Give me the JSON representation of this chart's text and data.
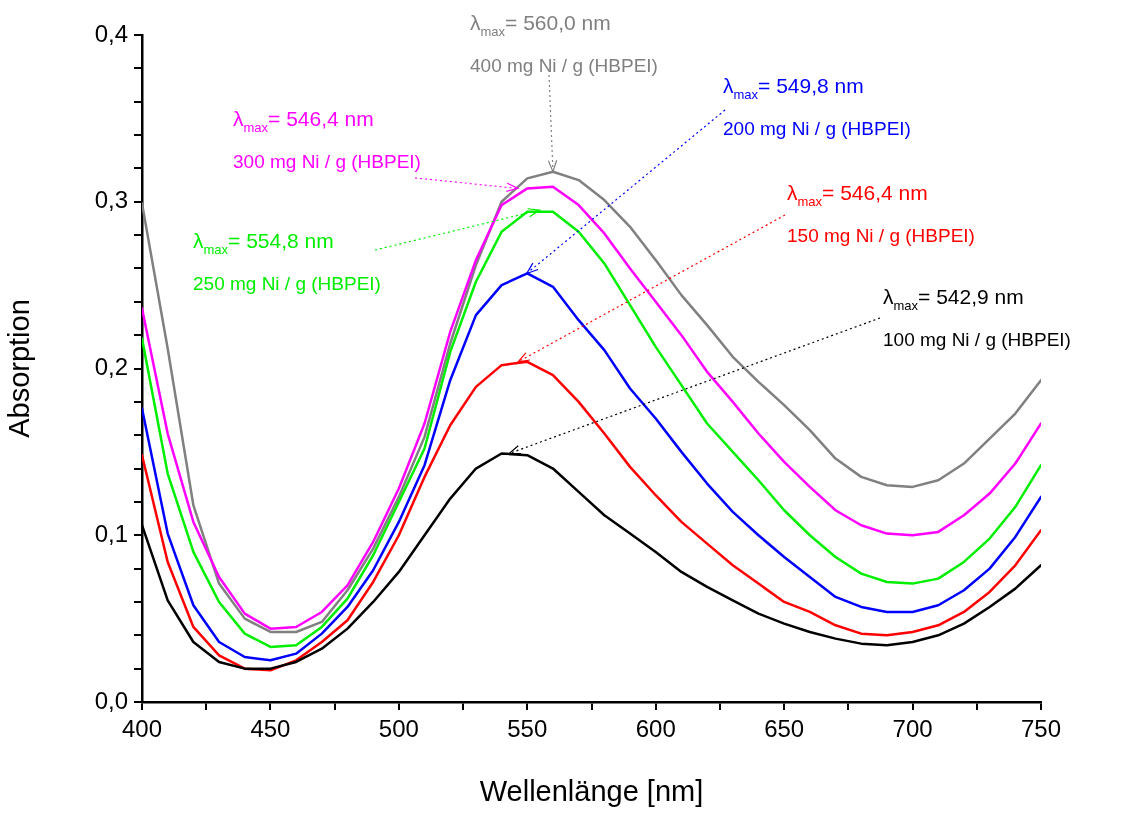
{
  "chart_data": {
    "type": "line",
    "xlabel": "Wellenlänge [nm]",
    "ylabel": "Absorption",
    "x": [
      400,
      410,
      420,
      430,
      440,
      450,
      460,
      470,
      480,
      490,
      500,
      510,
      520,
      530,
      540,
      550,
      560,
      570,
      580,
      590,
      600,
      610,
      620,
      630,
      640,
      650,
      660,
      670,
      680,
      690,
      700,
      710,
      720,
      730,
      740,
      750
    ],
    "series": [
      {
        "color": "#000000",
        "values": [
          0.106,
          0.061,
          0.036,
          0.024,
          0.02,
          0.02,
          0.024,
          0.032,
          0.044,
          0.06,
          0.078,
          0.1,
          0.122,
          0.14,
          0.149,
          0.148,
          0.14,
          0.126,
          0.112,
          0.101,
          0.09,
          0.078,
          0.069,
          0.061,
          0.053,
          0.047,
          0.042,
          0.038,
          0.035,
          0.034,
          0.036,
          0.04,
          0.047,
          0.057,
          0.068,
          0.082
        ]
      },
      {
        "color": "#ff0000",
        "values": [
          0.148,
          0.084,
          0.045,
          0.028,
          0.02,
          0.019,
          0.025,
          0.036,
          0.049,
          0.072,
          0.1,
          0.135,
          0.166,
          0.189,
          0.202,
          0.204,
          0.196,
          0.18,
          0.161,
          0.141,
          0.124,
          0.108,
          0.095,
          0.082,
          0.071,
          0.06,
          0.054,
          0.046,
          0.041,
          0.04,
          0.042,
          0.046,
          0.054,
          0.066,
          0.082,
          0.103
        ]
      },
      {
        "color": "#0000ff",
        "values": [
          0.176,
          0.101,
          0.058,
          0.036,
          0.027,
          0.025,
          0.029,
          0.041,
          0.057,
          0.079,
          0.108,
          0.142,
          0.193,
          0.232,
          0.25,
          0.257,
          0.249,
          0.229,
          0.211,
          0.188,
          0.17,
          0.15,
          0.131,
          0.114,
          0.1,
          0.087,
          0.075,
          0.063,
          0.057,
          0.054,
          0.054,
          0.058,
          0.067,
          0.08,
          0.099,
          0.123
        ]
      },
      {
        "color": "#00ee00",
        "values": [
          0.218,
          0.137,
          0.09,
          0.06,
          0.041,
          0.033,
          0.034,
          0.045,
          0.062,
          0.088,
          0.12,
          0.152,
          0.21,
          0.252,
          0.282,
          0.294,
          0.294,
          0.282,
          0.263,
          0.238,
          0.213,
          0.19,
          0.167,
          0.15,
          0.133,
          0.115,
          0.1,
          0.087,
          0.077,
          0.072,
          0.071,
          0.074,
          0.084,
          0.098,
          0.117,
          0.142
        ]
      },
      {
        "color": "#ff00ff",
        "values": [
          0.236,
          0.161,
          0.108,
          0.075,
          0.053,
          0.044,
          0.045,
          0.054,
          0.07,
          0.096,
          0.128,
          0.167,
          0.222,
          0.265,
          0.298,
          0.308,
          0.309,
          0.298,
          0.281,
          0.26,
          0.24,
          0.22,
          0.198,
          0.18,
          0.161,
          0.144,
          0.129,
          0.115,
          0.106,
          0.101,
          0.1,
          0.102,
          0.112,
          0.125,
          0.143,
          0.167
        ]
      },
      {
        "color": "#808080",
        "values": [
          0.299,
          0.212,
          0.118,
          0.071,
          0.05,
          0.042,
          0.042,
          0.048,
          0.067,
          0.092,
          0.123,
          0.159,
          0.215,
          0.262,
          0.3,
          0.314,
          0.318,
          0.313,
          0.301,
          0.285,
          0.265,
          0.244,
          0.226,
          0.207,
          0.192,
          0.178,
          0.163,
          0.146,
          0.135,
          0.13,
          0.129,
          0.133,
          0.143,
          0.158,
          0.173,
          0.193
        ]
      }
    ],
    "annotations": [
      {
        "text": "λ$_{max}$= 542,9 nm\n100 mg Ni / g (HBPEI)",
        "x": 542.9,
        "y": 0.149
      },
      {
        "text": "λ$_{max}$= 546,4 nm\n150 mg Ni / g (HBPEI)",
        "x": 546.4,
        "y": 0.204
      },
      {
        "text": "λ$_{max}$= 549,8 nm\n200 mg Ni / g (HBPEI)",
        "x": 549.8,
        "y": 0.257
      },
      {
        "text": "λ$_{max}$= 554,8 nm\n250 mg Ni / g (HBPEI)",
        "x": 554.8,
        "y": 0.295
      },
      {
        "text": "λ$_{max}$= 546,4 nm\n300 mg Ni / g (HBPEI)",
        "x": 546.4,
        "y": 0.308
      },
      {
        "text": "λ$_{max}$= 560,0 nm\n400 mg Ni / g (HBPEI)",
        "x": 560.0,
        "y": 0.318
      }
    ],
    "xlim": [
      400,
      750
    ],
    "xticks": [
      400,
      {
        "value": 425,
        "label": null
      },
      450,
      {
        "value": 475,
        "label": null
      },
      500,
      {
        "value": 525,
        "label": null
      },
      550,
      {
        "value": 575,
        "label": null
      },
      600,
      {
        "value": 625,
        "label": null
      },
      650,
      {
        "value": 675,
        "label": null
      },
      700,
      {
        "value": 725,
        "label": null
      },
      750
    ],
    "ylim": [
      0,
      0.4
    ],
    "yticks": [
      {
        "value": 0,
        "label": "0,0"
      },
      {
        "value": 0.02,
        "label": null
      },
      {
        "value": 0.04,
        "label": null
      },
      {
        "value": 0.06,
        "label": null
      },
      {
        "value": 0.08,
        "label": null
      },
      {
        "value": 0.1,
        "label": "0,1"
      },
      {
        "value": 0.12,
        "label": null
      },
      {
        "value": 0.14,
        "label": null
      },
      {
        "value": 0.16,
        "label": null
      },
      {
        "value": 0.18,
        "label": null
      },
      {
        "value": 0.2,
        "label": "0,2"
      },
      {
        "value": 0.22,
        "label": null
      },
      {
        "value": 0.24,
        "label": null
      },
      {
        "value": 0.26,
        "label": null
      },
      {
        "value": 0.28,
        "label": null
      },
      {
        "value": 0.3,
        "label": "0,3"
      },
      {
        "value": 0.32,
        "label": null
      },
      {
        "value": 0.34,
        "label": null
      },
      {
        "value": 0.36,
        "label": null
      },
      {
        "value": 0.38,
        "label": null
      },
      {
        "value": 0.4,
        "label": "0,4"
      }
    ],
    "grid": false,
    "legend": false,
    "marker": "none",
    "line_style": "solid"
  }
}
